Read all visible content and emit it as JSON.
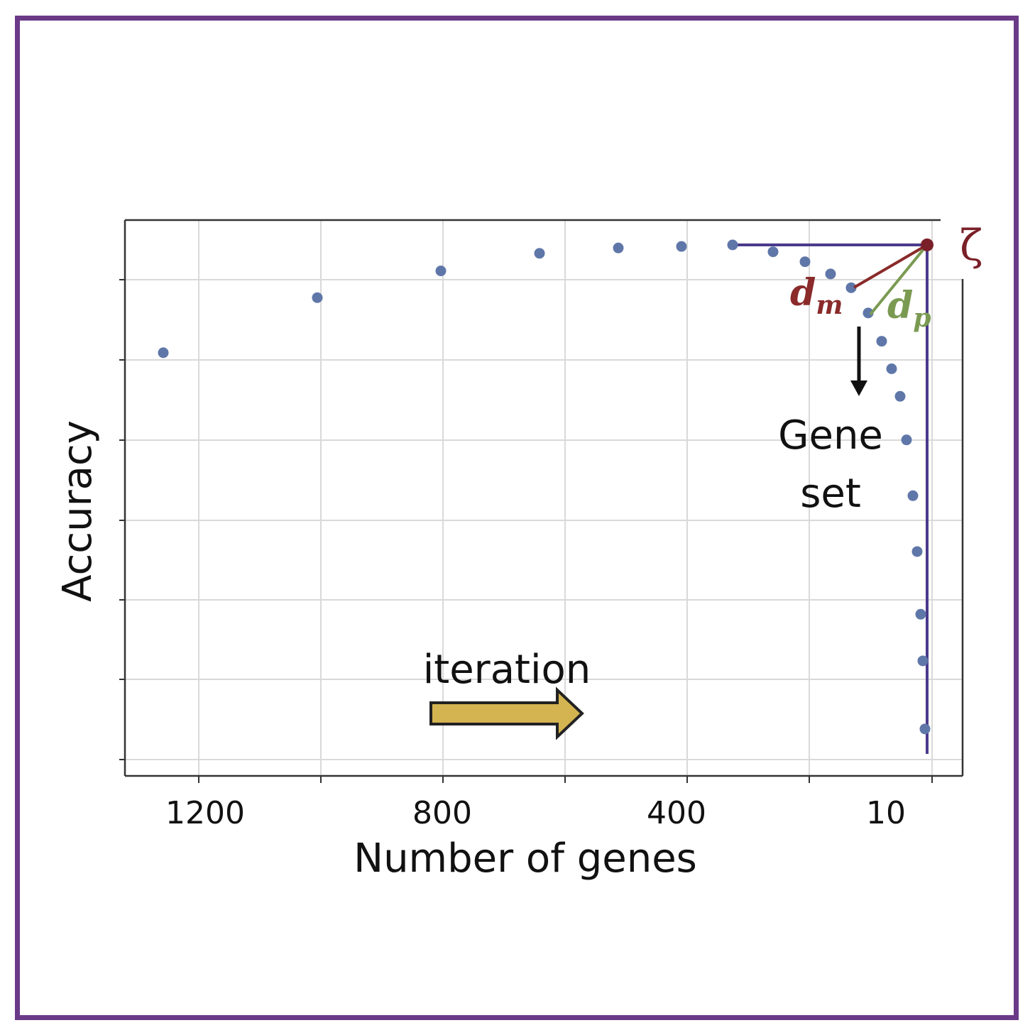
{
  "chart_data": {
    "type": "scatter",
    "xlabel": "Number of genes",
    "ylabel": "Accuracy",
    "x_tick_labels": [
      "1200",
      "800",
      "400",
      "10"
    ],
    "y_tick_labels": [],
    "grid": true,
    "marker_color": "#5f77a8",
    "series": [
      {
        "points": [
          {
            "x": 1289,
            "y": 0.52
          },
          {
            "x": 1000,
            "y": 0.592
          },
          {
            "x": 800,
            "y": 0.627
          },
          {
            "x": 640,
            "y": 0.65
          },
          {
            "x": 510,
            "y": 0.657
          },
          {
            "x": 408,
            "y": 0.659
          },
          {
            "x": 324,
            "y": 0.661
          },
          {
            "x": 258,
            "y": 0.652
          },
          {
            "x": 205,
            "y": 0.639
          },
          {
            "x": 163,
            "y": 0.623
          },
          {
            "x": 129,
            "y": 0.605
          },
          {
            "x": 102,
            "y": 0.572
          },
          {
            "x": 80,
            "y": 0.535
          },
          {
            "x": 63,
            "y": 0.499
          },
          {
            "x": 50,
            "y": 0.463
          },
          {
            "x": 39,
            "y": 0.406
          },
          {
            "x": 29,
            "y": 0.333
          },
          {
            "x": 22,
            "y": 0.26
          },
          {
            "x": 17,
            "y": 0.178
          },
          {
            "x": 13,
            "y": 0.117
          },
          {
            "x": 10,
            "y": 0.028
          }
        ]
      }
    ],
    "reference_point": {
      "label": "ζ",
      "x": 0,
      "y": 0.661,
      "color": "#7a2028"
    },
    "reference_lines_color": "#4b3a8c",
    "distance_labels": [
      {
        "label": "d",
        "subscript": "m",
        "color": "#8a2a2a"
      },
      {
        "label": "d",
        "subscript": "p",
        "color": "#7a9a52"
      }
    ],
    "annotations": {
      "gene_set_line1": "Gene",
      "gene_set_line2": "set",
      "iteration": "iteration"
    },
    "iteration_arrow_color": "#d4b451"
  }
}
